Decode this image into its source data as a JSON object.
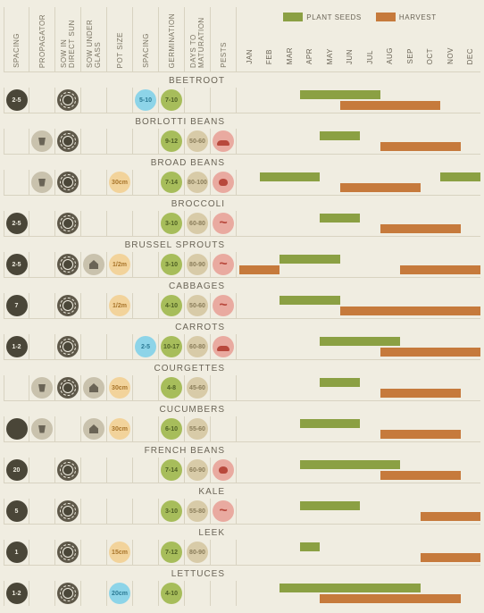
{
  "colors": {
    "plant": "#8ba043",
    "harvest": "#c67a3c",
    "bg": "#f0ede1"
  },
  "legend": {
    "plant": "PLANT SEEDS",
    "harvest": "HARVEST"
  },
  "info_headers": [
    "SPACING",
    "PROPAGATOR",
    "SOW IN DIRECT SUN",
    "SOW UNDER GLASS",
    "POT SIZE",
    "SPACING",
    "GERMINATION",
    "DAYS TO MATURATION",
    "PESTS"
  ],
  "months": [
    "JAN",
    "FEB",
    "MAR",
    "APR",
    "MAY",
    "JUN",
    "JUL",
    "AUG",
    "SEP",
    "OCT",
    "NOV",
    "DEC"
  ],
  "rows": [
    {
      "name": "BEETROOT",
      "cells": [
        {
          "t": "dark",
          "v": "2-5"
        },
        null,
        {
          "t": "sun"
        },
        null,
        null,
        {
          "t": "blue",
          "v": "5-10"
        },
        {
          "t": "grn",
          "v": "7-10"
        },
        null,
        null
      ],
      "bars": [
        {
          "k": "p",
          "s": 3,
          "e": 7
        },
        {
          "k": "h",
          "s": 5,
          "e": 10
        }
      ]
    },
    {
      "name": "BORLOTTI BEANS",
      "cells": [
        null,
        {
          "t": "pot"
        },
        {
          "t": "sun"
        },
        null,
        null,
        null,
        {
          "t": "grn",
          "v": "9-12"
        },
        {
          "t": "tan",
          "v": "50-60"
        },
        {
          "t": "pest",
          "p": "sl"
        }
      ],
      "bars": [
        {
          "k": "p",
          "s": 4,
          "e": 6
        },
        {
          "k": "h",
          "s": 7,
          "e": 11
        }
      ]
    },
    {
      "name": "BROAD BEANS",
      "cells": [
        null,
        {
          "t": "pot"
        },
        {
          "t": "sun"
        },
        null,
        {
          "t": "potc",
          "v": "30cm"
        },
        null,
        {
          "t": "grn",
          "v": "7-14"
        },
        {
          "t": "tan",
          "v": "80-100"
        },
        {
          "t": "pest",
          "p": "bt"
        }
      ],
      "bars": [
        {
          "k": "p",
          "s": 1,
          "e": 4
        },
        {
          "k": "p",
          "s": 10,
          "e": 12
        },
        {
          "k": "h",
          "s": 5,
          "e": 9
        }
      ]
    },
    {
      "name": "BROCCOLI",
      "cells": [
        {
          "t": "dark",
          "v": "2-5"
        },
        null,
        {
          "t": "sun"
        },
        null,
        null,
        null,
        {
          "t": "grn",
          "v": "3-10"
        },
        {
          "t": "tan",
          "v": "60-80"
        },
        {
          "t": "pest",
          "p": "wm"
        }
      ],
      "bars": [
        {
          "k": "p",
          "s": 4,
          "e": 6
        },
        {
          "k": "h",
          "s": 7,
          "e": 11
        }
      ]
    },
    {
      "name": "BRUSSEL SPROUTS",
      "cells": [
        {
          "t": "dark",
          "v": "2-5"
        },
        null,
        {
          "t": "sun"
        },
        {
          "t": "glass"
        },
        {
          "t": "potc",
          "v": "1/2m"
        },
        null,
        {
          "t": "grn",
          "v": "3-10"
        },
        {
          "t": "tan",
          "v": "80-90"
        },
        {
          "t": "pest",
          "p": "wm"
        }
      ],
      "bars": [
        {
          "k": "p",
          "s": 2,
          "e": 5
        },
        {
          "k": "h",
          "s": 0,
          "e": 2
        },
        {
          "k": "h",
          "s": 8,
          "e": 12
        }
      ]
    },
    {
      "name": "CABBAGES",
      "cells": [
        {
          "t": "dark",
          "v": "7"
        },
        null,
        {
          "t": "sun"
        },
        null,
        {
          "t": "potc",
          "v": "1/2m"
        },
        null,
        {
          "t": "grn",
          "v": "4-10"
        },
        {
          "t": "tan",
          "v": "50-60"
        },
        {
          "t": "pest",
          "p": "wm"
        },
        {
          "t": "pest",
          "p": "sl"
        }
      ],
      "bars": [
        {
          "k": "p",
          "s": 2,
          "e": 5
        },
        {
          "k": "h",
          "s": 5,
          "e": 12
        }
      ]
    },
    {
      "name": "CARROTS",
      "cells": [
        {
          "t": "dark",
          "v": "1-2"
        },
        null,
        {
          "t": "sun"
        },
        null,
        null,
        {
          "t": "blue",
          "v": "2-5"
        },
        {
          "t": "grn",
          "v": "10-17"
        },
        {
          "t": "tan",
          "v": "60-80"
        },
        {
          "t": "pest",
          "p": "sl"
        }
      ],
      "bars": [
        {
          "k": "p",
          "s": 4,
          "e": 8
        },
        {
          "k": "h",
          "s": 7,
          "e": 12
        }
      ]
    },
    {
      "name": "COURGETTES",
      "cells": [
        null,
        {
          "t": "pot"
        },
        {
          "t": "sun"
        },
        {
          "t": "glass"
        },
        {
          "t": "potc",
          "v": "30cm"
        },
        null,
        {
          "t": "grn",
          "v": "4-8"
        },
        {
          "t": "tan",
          "v": "45-60"
        },
        null
      ],
      "bars": [
        {
          "k": "p",
          "s": 4,
          "e": 6
        },
        {
          "k": "h",
          "s": 7,
          "e": 11
        }
      ]
    },
    {
      "name": "CUCUMBERS",
      "cells": [
        {
          "t": "dark",
          "v": ""
        },
        {
          "t": "pot"
        },
        null,
        {
          "t": "glass"
        },
        {
          "t": "potc",
          "v": "30cm"
        },
        null,
        {
          "t": "grn",
          "v": "6-10"
        },
        {
          "t": "tan",
          "v": "55-60"
        },
        null
      ],
      "bars": [
        {
          "k": "p",
          "s": 3,
          "e": 6
        },
        {
          "k": "h",
          "s": 7,
          "e": 11
        }
      ]
    },
    {
      "name": "FRENCH BEANS",
      "cells": [
        {
          "t": "dark",
          "v": "20"
        },
        null,
        {
          "t": "sun"
        },
        null,
        null,
        null,
        {
          "t": "grn",
          "v": "7-14"
        },
        {
          "t": "tan",
          "v": "60-90"
        },
        {
          "t": "pest",
          "p": "bt"
        },
        {
          "t": "pest",
          "p": "sl"
        }
      ],
      "bars": [
        {
          "k": "p",
          "s": 3,
          "e": 8
        },
        {
          "k": "h",
          "s": 7,
          "e": 11
        }
      ]
    },
    {
      "name": "KALE",
      "cells": [
        {
          "t": "dark",
          "v": "5"
        },
        null,
        {
          "t": "sun"
        },
        null,
        null,
        null,
        {
          "t": "grn",
          "v": "3-10"
        },
        {
          "t": "tan",
          "v": "55-80"
        },
        {
          "t": "pest",
          "p": "wm"
        }
      ],
      "bars": [
        {
          "k": "p",
          "s": 3,
          "e": 6
        },
        {
          "k": "h",
          "s": 9,
          "e": 12
        }
      ]
    },
    {
      "name": "LEEK",
      "cells": [
        {
          "t": "dark",
          "v": "1"
        },
        null,
        {
          "t": "sun"
        },
        null,
        {
          "t": "potc",
          "v": "15cm"
        },
        null,
        {
          "t": "grn",
          "v": "7-12"
        },
        {
          "t": "tan",
          "v": "80-90"
        },
        null
      ],
      "bars": [
        {
          "k": "p",
          "s": 3,
          "e": 4
        },
        {
          "k": "h",
          "s": 9,
          "e": 12
        }
      ]
    },
    {
      "name": "LETTUCES",
      "cells": [
        {
          "t": "dark",
          "v": "1-2"
        },
        null,
        {
          "t": "sun"
        },
        null,
        {
          "t": "blue",
          "v": "20cm"
        },
        null,
        {
          "t": "grn",
          "v": "4-10"
        },
        null,
        null
      ],
      "bars": [
        {
          "k": "p",
          "s": 2,
          "e": 9
        },
        {
          "k": "h",
          "s": 4,
          "e": 11
        }
      ]
    }
  ]
}
